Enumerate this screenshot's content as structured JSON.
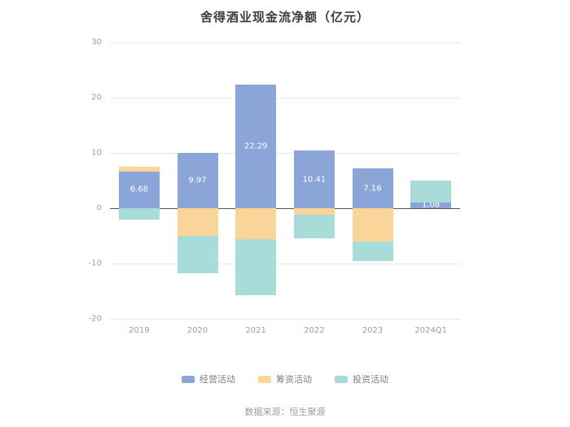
{
  "source_text": "数据来源：恒生聚源",
  "chart_data": {
    "type": "bar",
    "stacked": true,
    "title": "舍得酒业现金流净额（亿元）",
    "xlabel": "",
    "ylabel": "",
    "categories": [
      "2019",
      "2020",
      "2021",
      "2022",
      "2023",
      "2024Q1"
    ],
    "series": [
      {
        "name": "经营活动",
        "key": "operating",
        "color": "#8ca5d8",
        "show_labels": true,
        "values": [
          6.68,
          9.97,
          22.29,
          10.41,
          7.16,
          1.08
        ]
      },
      {
        "name": "筹资活动",
        "key": "financing",
        "color": "#f9d59a",
        "show_labels": false,
        "values": [
          0.85,
          -5.0,
          -5.6,
          -1.2,
          -6.0,
          0
        ]
      },
      {
        "name": "投资活动",
        "key": "investing",
        "color": "#a8dcd9",
        "show_labels": false,
        "values": [
          -2.0,
          -6.7,
          -10.1,
          -4.3,
          -3.5,
          3.9
        ]
      }
    ],
    "ylim": [
      -20,
      30
    ],
    "yticks": [
      30,
      20,
      10,
      0,
      -10,
      -20
    ],
    "grid": true,
    "legend_position": "bottom"
  }
}
